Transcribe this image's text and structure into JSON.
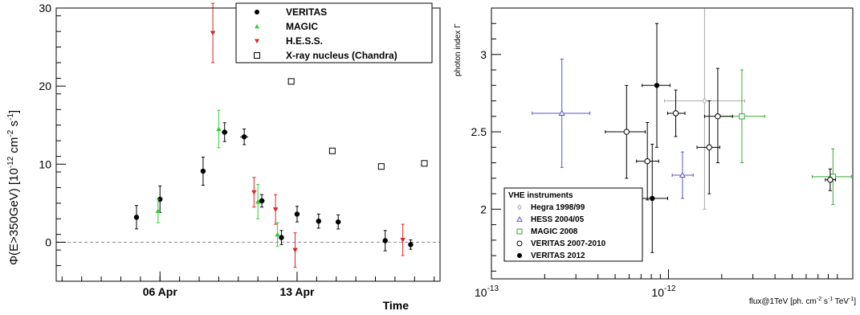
{
  "chart_data": [
    {
      "type": "scatter",
      "title": "",
      "xlabel": "Time",
      "ylabel": "Φ(E>350GeV) [10",
      "ylabel_exp1": "-12",
      "ylabel_mid": " cm",
      "ylabel_exp2": "-2",
      "ylabel_mid2": " s",
      "ylabel_exp3": "-1",
      "ylabel_end": "]",
      "x_unit": "days since 01 Apr",
      "xlim": [
        0.7,
        20.3
      ],
      "ylim": [
        -5,
        30
      ],
      "xticks": [
        {
          "x": 6,
          "label": "06 Apr"
        },
        {
          "x": 13,
          "label": "13 Apr"
        }
      ],
      "yticks": [
        0,
        10,
        20,
        30
      ],
      "reference_line": 0,
      "legend_position": "top-right",
      "series": [
        {
          "name": "VERITAS",
          "color": "#000000",
          "marker": "circle",
          "points": [
            {
              "x": 4.8,
              "y": 3.2,
              "yerr": 1.5
            },
            {
              "x": 6.0,
              "y": 5.5,
              "yerr": 1.7
            },
            {
              "x": 8.2,
              "y": 9.1,
              "yerr": 1.8
            },
            {
              "x": 9.3,
              "y": 14.1,
              "yerr": 1.2,
              "xerr": 0.15
            },
            {
              "x": 10.3,
              "y": 13.5,
              "yerr": 1.0,
              "xerr": 0.2
            },
            {
              "x": 11.2,
              "y": 5.3,
              "yerr": 0.8,
              "xerr": 0.15
            },
            {
              "x": 12.2,
              "y": 0.6,
              "yerr": 0.9
            },
            {
              "x": 13.0,
              "y": 3.6,
              "yerr": 1.0
            },
            {
              "x": 14.1,
              "y": 2.7,
              "yerr": 0.9
            },
            {
              "x": 15.1,
              "y": 2.6,
              "yerr": 0.9
            },
            {
              "x": 17.5,
              "y": 0.2,
              "yerr": 1.3
            },
            {
              "x": 18.8,
              "y": -0.3,
              "yerr": 0.6
            }
          ]
        },
        {
          "name": "MAGIC",
          "color": "#33cc33",
          "marker": "triangle-up",
          "points": [
            {
              "x": 5.9,
              "y": 4.0,
              "yerr": 1.5
            },
            {
              "x": 9.0,
              "y": 14.5,
              "yerr": 2.4
            },
            {
              "x": 11.0,
              "y": 5.2,
              "yerr": 2.2
            },
            {
              "x": 12.0,
              "y": 1.0,
              "yerr": 1.5
            }
          ]
        },
        {
          "name": "H.E.S.S.",
          "color": "#dd2222",
          "marker": "triangle-down",
          "points": [
            {
              "x": 8.7,
              "y": 26.8,
              "yerr": 3.8
            },
            {
              "x": 10.8,
              "y": 6.4,
              "yerr": 1.9
            },
            {
              "x": 11.9,
              "y": 4.2,
              "yerr": 1.9
            },
            {
              "x": 12.9,
              "y": -1.0,
              "yerr": 2.2
            },
            {
              "x": 18.4,
              "y": 0.3,
              "yerr": 2.0
            }
          ]
        },
        {
          "name": "X-ray nucleus (Chandra)",
          "color": "#000000",
          "marker": "open-square",
          "points": [
            {
              "x": 12.7,
              "y": 20.6
            },
            {
              "x": 14.8,
              "y": 11.7
            },
            {
              "x": 17.3,
              "y": 9.7
            },
            {
              "x": 19.5,
              "y": 10.1
            }
          ]
        }
      ]
    },
    {
      "type": "scatter",
      "title": "",
      "xlabel": "flux@1TeV [ph. cm",
      "xlabel_exp1": "-2",
      "xlabel_mid": " s",
      "xlabel_exp2": "-1",
      "xlabel_mid2": " TeV",
      "xlabel_exp3": "-1",
      "xlabel_end": "]",
      "ylabel": "photon index Γ",
      "xscale": "log",
      "xlim": [
        1e-13,
        1.1e-11
      ],
      "ylim": [
        1.55,
        3.3
      ],
      "xticks": [
        {
          "x": 1e-13,
          "label": "10",
          "exp": "-13"
        },
        {
          "x": 1e-12,
          "label": "10",
          "exp": "-12"
        }
      ],
      "yticks": [
        2,
        2.5,
        3
      ],
      "legend_title": "VHE instruments",
      "legend_position": "bottom-left",
      "series": [
        {
          "name": "Hegra 1998/99",
          "color": "#aaaaaa",
          "marker": "open-diamond",
          "points": [
            {
              "x": 1.6e-12,
              "y": 2.7,
              "xlo": 9.5e-13,
              "xhi": 2.7e-12,
              "ylo": 2.0,
              "yhi": 3.35
            }
          ]
        },
        {
          "name": "HESS 2004/05",
          "color": "#5555cc",
          "marker": "open-triangle",
          "points": [
            {
              "x": 2.5e-13,
              "y": 2.62,
              "xlo": 1.7e-13,
              "xhi": 3.6e-13,
              "ylo": 2.27,
              "yhi": 2.97
            },
            {
              "x": 1.2e-12,
              "y": 2.22,
              "xlo": 1.05e-12,
              "xhi": 1.38e-12,
              "ylo": 2.07,
              "yhi": 2.37
            }
          ]
        },
        {
          "name": "MAGIC 2008",
          "color": "#33aa33",
          "marker": "open-square",
          "points": [
            {
              "x": 2.6e-12,
              "y": 2.6,
              "xlo": 1.9e-12,
              "xhi": 3.5e-12,
              "ylo": 2.3,
              "yhi": 2.9
            },
            {
              "x": 8.5e-12,
              "y": 2.21,
              "xlo": 6.5e-12,
              "xhi": 1.08e-11,
              "ylo": 2.03,
              "yhi": 2.39
            }
          ]
        },
        {
          "name": "VERITAS 2007-2010",
          "color": "#000000",
          "marker": "open-circle",
          "points": [
            {
              "x": 5.8e-13,
              "y": 2.5,
              "xlo": 4.4e-13,
              "xhi": 7.4e-13,
              "ylo": 2.2,
              "yhi": 2.8
            },
            {
              "x": 7.6e-13,
              "y": 2.31,
              "xlo": 6.6e-13,
              "xhi": 8.8e-13,
              "ylo": 2.06,
              "yhi": 2.56
            },
            {
              "x": 1.1e-12,
              "y": 2.62,
              "xlo": 9.9e-13,
              "xhi": 1.24e-12,
              "ylo": 2.47,
              "yhi": 2.77
            },
            {
              "x": 1.7e-12,
              "y": 2.4,
              "xlo": 1.45e-12,
              "xhi": 1.95e-12,
              "ylo": 2.1,
              "yhi": 2.7
            },
            {
              "x": 1.9e-12,
              "y": 2.6,
              "xlo": 1.6e-12,
              "xhi": 2.3e-12,
              "ylo": 2.3,
              "yhi": 2.91
            },
            {
              "x": 8.2e-12,
              "y": 2.19,
              "xlo": 7.7e-12,
              "xhi": 8.8e-12,
              "ylo": 2.12,
              "yhi": 2.26
            }
          ]
        },
        {
          "name": "VERITAS 2012",
          "color": "#000000",
          "marker": "circle",
          "points": [
            {
              "x": 8.6e-13,
              "y": 2.8,
              "xlo": 7.1e-13,
              "xhi": 1.02e-12,
              "ylo": 2.4,
              "yhi": 3.2
            },
            {
              "x": 8.1e-13,
              "y": 2.07,
              "xlo": 6.6e-13,
              "xhi": 9.9e-13,
              "ylo": 1.72,
              "yhi": 2.42
            }
          ]
        }
      ]
    }
  ]
}
